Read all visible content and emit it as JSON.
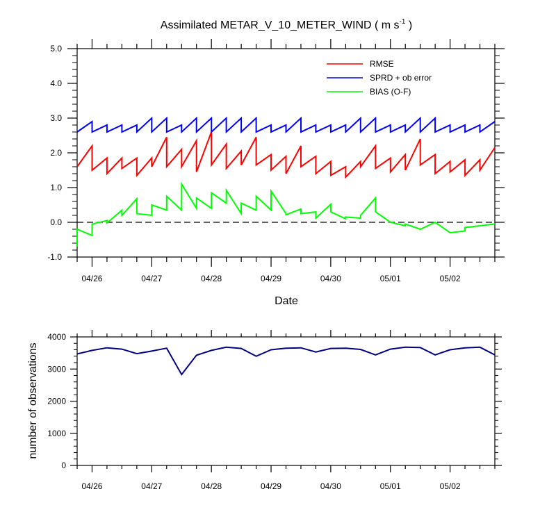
{
  "chart_data": [
    {
      "type": "line",
      "title": "Assimilated METAR_V_10_METER_WIND",
      "title_units_prefix": " ( m s",
      "title_units_sup": "-1",
      "title_units_suffix": " )",
      "xlabel": "Date",
      "ylabel": "",
      "ylim": [
        -1.0,
        5.0
      ],
      "yticks": [
        "-1.0",
        "0.0",
        "1.0",
        "2.0",
        "3.0",
        "4.0",
        "5.0"
      ],
      "xlim": [
        0,
        28
      ],
      "x_tick_labels": [
        {
          "x": 1,
          "label": "04/26"
        },
        {
          "x": 5,
          "label": "04/27"
        },
        {
          "x": 9,
          "label": "04/28"
        },
        {
          "x": 13,
          "label": "04/29"
        },
        {
          "x": 17,
          "label": "04/30"
        },
        {
          "x": 21,
          "label": "05/01"
        },
        {
          "x": 25,
          "label": "05/02"
        }
      ],
      "x_units": "6-hourly cycles",
      "zero_line": "dashed",
      "legend_position": "top-right",
      "series": [
        {
          "name": "RMSE",
          "color": "#ff0000",
          "x": [
            0,
            1,
            1,
            2,
            2,
            3,
            3,
            4,
            4,
            5,
            5,
            6,
            6,
            7,
            7,
            8,
            8,
            9,
            9,
            10,
            10,
            11,
            11,
            12,
            12,
            13,
            13,
            14,
            14,
            15,
            15,
            16,
            16,
            17,
            17,
            18,
            18,
            19,
            19,
            20,
            20,
            21,
            21,
            22,
            22,
            23,
            23,
            24,
            24,
            25,
            25,
            26,
            26,
            27,
            27,
            28
          ],
          "y": [
            1.6,
            2.2,
            1.5,
            1.85,
            1.4,
            1.85,
            1.55,
            1.85,
            1.35,
            1.85,
            1.6,
            2.45,
            1.6,
            2.1,
            1.6,
            2.35,
            1.45,
            2.6,
            1.65,
            2.25,
            1.55,
            2.05,
            1.65,
            2.45,
            1.65,
            1.95,
            1.5,
            1.9,
            1.4,
            2.2,
            1.6,
            1.9,
            1.4,
            1.75,
            1.35,
            1.6,
            1.3,
            1.75,
            1.6,
            2.2,
            1.55,
            1.85,
            1.45,
            1.95,
            1.5,
            2.4,
            1.65,
            1.95,
            1.4,
            1.75,
            1.45,
            1.8,
            1.35,
            1.8,
            1.5,
            2.15
          ]
        },
        {
          "name": "SPRD + ob error",
          "color": "#0000ff",
          "x": [
            0,
            1,
            1,
            2,
            2,
            3,
            3,
            4,
            4,
            5,
            5,
            6,
            6,
            7,
            7,
            8,
            8,
            9,
            9,
            10,
            10,
            11,
            11,
            12,
            12,
            13,
            13,
            14,
            14,
            15,
            15,
            16,
            16,
            17,
            17,
            18,
            18,
            19,
            19,
            20,
            20,
            21,
            21,
            22,
            22,
            23,
            23,
            24,
            24,
            25,
            25,
            26,
            26,
            27,
            27,
            28
          ],
          "y": [
            2.6,
            2.9,
            2.6,
            2.8,
            2.6,
            2.8,
            2.6,
            2.8,
            2.6,
            3.0,
            2.6,
            3.0,
            2.6,
            2.8,
            2.6,
            3.0,
            2.6,
            3.0,
            2.6,
            3.0,
            2.6,
            3.0,
            2.6,
            3.0,
            2.6,
            2.8,
            2.6,
            2.8,
            2.6,
            3.0,
            2.6,
            2.8,
            2.6,
            2.8,
            2.6,
            2.8,
            2.6,
            3.0,
            2.6,
            3.0,
            2.6,
            2.8,
            2.6,
            2.8,
            2.6,
            3.0,
            2.6,
            3.0,
            2.6,
            2.8,
            2.6,
            2.8,
            2.6,
            2.8,
            2.6,
            2.9
          ]
        },
        {
          "name": "BIAS (O-F)",
          "color": "#00ff00",
          "x": [
            0,
            0,
            1,
            1,
            2,
            2,
            3,
            3,
            4,
            4,
            5,
            5,
            6,
            6,
            7,
            7,
            8,
            8,
            9,
            9,
            10,
            10,
            11,
            11,
            12,
            12,
            13,
            13,
            14,
            14,
            15,
            15,
            16,
            16,
            17,
            17,
            18,
            18,
            19,
            19,
            20,
            20,
            21,
            22,
            22,
            23,
            24,
            25,
            26,
            26,
            27,
            28
          ],
          "y": [
            -0.7,
            -0.2,
            -0.38,
            -0.05,
            0.05,
            -0.02,
            0.35,
            0.2,
            0.68,
            0.25,
            0.2,
            0.5,
            0.35,
            0.75,
            0.35,
            1.1,
            0.4,
            0.7,
            0.4,
            0.85,
            0.55,
            0.92,
            0.25,
            0.55,
            0.35,
            0.75,
            0.35,
            0.9,
            0.25,
            0.22,
            0.38,
            0.25,
            0.3,
            0.12,
            0.52,
            0.3,
            0.1,
            0.15,
            0.12,
            0.2,
            0.7,
            0.3,
            0.0,
            -0.1,
            -0.05,
            -0.2,
            0.0,
            -0.3,
            -0.25,
            -0.15,
            -0.1,
            -0.05
          ]
        }
      ]
    },
    {
      "type": "line",
      "title": "",
      "xlabel": "",
      "ylabel": "number of observations",
      "ylim": [
        0,
        4000
      ],
      "yticks": [
        "0",
        "1000",
        "2000",
        "3000",
        "4000"
      ],
      "xlim": [
        0,
        28
      ],
      "x_tick_labels": [
        {
          "x": 1,
          "label": "04/26"
        },
        {
          "x": 5,
          "label": "04/27"
        },
        {
          "x": 9,
          "label": "04/28"
        },
        {
          "x": 13,
          "label": "04/29"
        },
        {
          "x": 17,
          "label": "04/30"
        },
        {
          "x": 21,
          "label": "05/01"
        },
        {
          "x": 25,
          "label": "05/02"
        }
      ],
      "series": [
        {
          "color": "#000080",
          "x": [
            0,
            1,
            2,
            3,
            4,
            5,
            6,
            7,
            8,
            9,
            10,
            11,
            12,
            13,
            14,
            15,
            16,
            17,
            18,
            19,
            20,
            21,
            22,
            23,
            24,
            25,
            26,
            27,
            28
          ],
          "y": [
            3470,
            3580,
            3660,
            3620,
            3480,
            3560,
            3650,
            2830,
            3430,
            3580,
            3680,
            3640,
            3400,
            3600,
            3650,
            3660,
            3530,
            3640,
            3650,
            3610,
            3440,
            3620,
            3680,
            3670,
            3440,
            3600,
            3660,
            3680,
            3440
          ]
        }
      ]
    }
  ]
}
